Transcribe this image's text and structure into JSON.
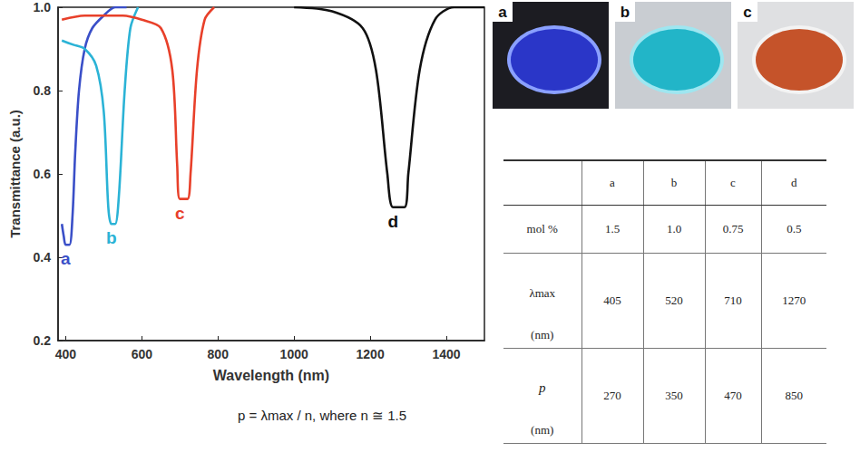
{
  "chart_data": {
    "type": "line",
    "x_label": "Wavelength (nm)",
    "y_label": "Transmittance (a.u.)",
    "xlim": [
      380,
      1500
    ],
    "xticks": [
      400,
      600,
      800,
      1000,
      1200,
      1400
    ],
    "ylim": [
      0.2,
      1.0
    ],
    "yticks": [
      0.2,
      0.4,
      0.6,
      0.8,
      {
        "value": 1.0,
        "label": "1.0"
      }
    ],
    "grid": false,
    "series": [
      {
        "name": "a",
        "color": "#3a4fc8",
        "x": [
          390,
          395,
          400,
          410,
          418,
          425,
          435,
          450,
          470,
          500,
          530,
          560
        ],
        "values": [
          0.48,
          0.45,
          0.43,
          0.43,
          0.5,
          0.65,
          0.8,
          0.9,
          0.95,
          0.98,
          1.0,
          1.0
        ]
      },
      {
        "name": "b",
        "color": "#2bb3d6",
        "x": [
          390,
          420,
          450,
          480,
          500,
          512,
          520,
          530,
          540,
          555,
          570,
          590
        ],
        "values": [
          0.92,
          0.91,
          0.9,
          0.86,
          0.75,
          0.52,
          0.48,
          0.48,
          0.55,
          0.8,
          0.95,
          1.0
        ]
      },
      {
        "name": "c",
        "color": "#e8402a",
        "x": [
          390,
          450,
          500,
          550,
          600,
          650,
          680,
          693,
          700,
          720,
          728,
          745,
          765,
          790
        ],
        "values": [
          0.97,
          0.98,
          0.98,
          0.98,
          0.97,
          0.95,
          0.85,
          0.62,
          0.54,
          0.54,
          0.6,
          0.85,
          0.97,
          1.0
        ]
      },
      {
        "name": "d",
        "color": "#111111",
        "x": [
          1000,
          1100,
          1180,
          1215,
          1245,
          1260,
          1290,
          1300,
          1330,
          1370,
          1420,
          1500
        ],
        "values": [
          1.0,
          0.99,
          0.95,
          0.85,
          0.6,
          0.52,
          0.52,
          0.6,
          0.85,
          0.97,
          1.0,
          1.0
        ]
      }
    ]
  },
  "formula": "p = λmax / n, where n ≅ 1.5",
  "photos": {
    "labels": [
      "a",
      "b",
      "c"
    ]
  },
  "table": {
    "columns": [
      "a",
      "b",
      "c",
      "d"
    ],
    "rows": [
      {
        "label": "mol %",
        "values": [
          "1.5",
          "1.0",
          "0.75",
          "0.5"
        ]
      },
      {
        "label": "λmax",
        "unit": "(nm)",
        "values": [
          "405",
          "520",
          "710",
          "1270"
        ]
      },
      {
        "label": "p",
        "unit": "(nm)",
        "values": [
          "270",
          "350",
          "470",
          "850"
        ]
      }
    ]
  }
}
